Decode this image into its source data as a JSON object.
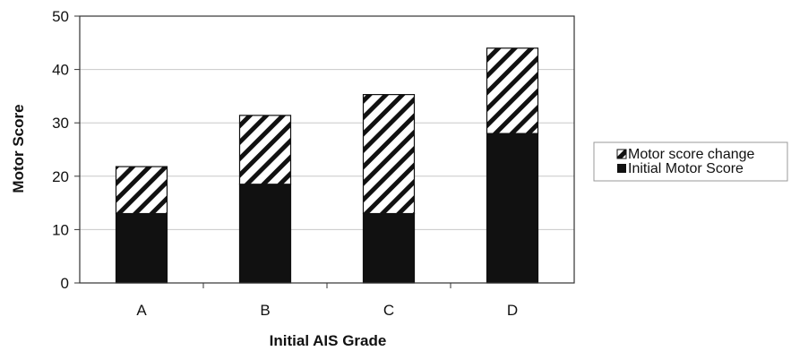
{
  "chart_data": {
    "type": "bar",
    "stacked": true,
    "categories": [
      "A",
      "B",
      "C",
      "D"
    ],
    "series": [
      {
        "name": "Initial Motor Score",
        "values": [
          13,
          18.5,
          13,
          28
        ],
        "fill": "solid",
        "color": "#111111"
      },
      {
        "name": "Motor score change",
        "values": [
          8.8,
          12.9,
          22.3,
          16
        ],
        "fill": "diagonal-hatch",
        "color": "#111111"
      }
    ],
    "xlabel": "Initial AIS Grade",
    "ylabel": "Motor Score",
    "ylim": [
      0,
      50
    ],
    "yticks": [
      0,
      10,
      20,
      30,
      40,
      50
    ],
    "grid": "horizontal",
    "legend": {
      "placement": "right",
      "entries": [
        "Motor score change",
        "Initial Motor Score"
      ]
    }
  }
}
